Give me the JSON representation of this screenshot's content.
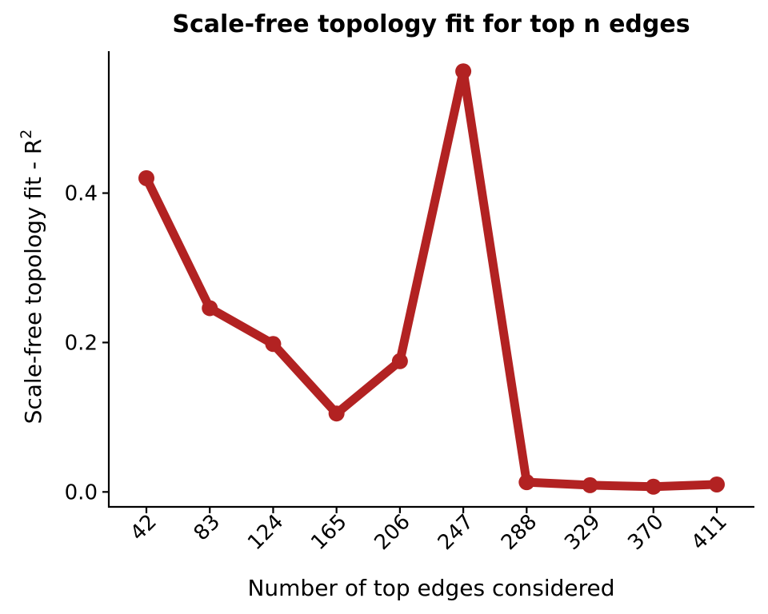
{
  "chart_data": {
    "type": "line",
    "title": "Scale-free topology fit for top n edges",
    "xlabel": "Number of top edges considered",
    "ylabel_main": "Scale-free topology fit - R",
    "ylabel_superscript": "2",
    "categories": [
      "42",
      "83",
      "124",
      "165",
      "206",
      "247",
      "288",
      "329",
      "370",
      "411"
    ],
    "series": [
      {
        "values": [
          0.42,
          0.246,
          0.198,
          0.105,
          0.175,
          0.563,
          0.013,
          0.009,
          0.007,
          0.01
        ],
        "color": "#B22222"
      }
    ],
    "yticks": [
      0.0,
      0.2,
      0.4
    ],
    "ytick_labels": [
      "0.0",
      "0.2",
      "0.4"
    ],
    "ylim": [
      -0.02,
      0.59
    ],
    "grid": false,
    "legend": "none"
  }
}
